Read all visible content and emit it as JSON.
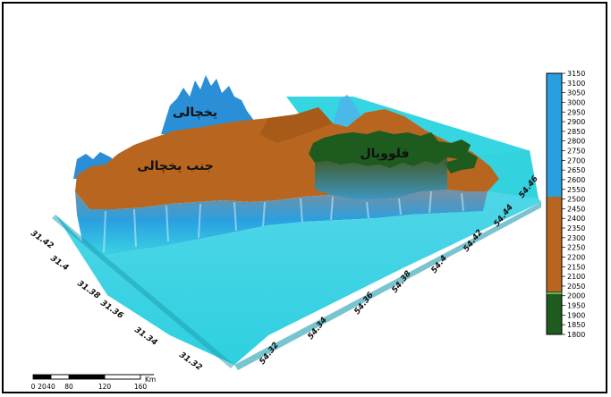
{
  "map": {
    "region_labels": [
      {
        "key": "yakhchal",
        "text": "یخچالی"
      },
      {
        "key": "south_yakhchal",
        "text": "جنب یخچالی"
      },
      {
        "key": "fluvial",
        "text": "فلوویال"
      }
    ],
    "lat_ticks": [
      "31.42",
      "31.4",
      "31.38",
      "31.36",
      "31.34",
      "31.32"
    ],
    "lon_ticks": [
      "54.32",
      "54.34",
      "54.36",
      "54.38",
      "54.4",
      "54.42",
      "54.44",
      "54.46"
    ]
  },
  "legend": {
    "ticks": [
      "3150",
      "3100",
      "3050",
      "3000",
      "2950",
      "2900",
      "2850",
      "2800",
      "2750",
      "2700",
      "2650",
      "2600",
      "2550",
      "2500",
      "2450",
      "2400",
      "2350",
      "2300",
      "2250",
      "2200",
      "2150",
      "2100",
      "2050",
      "2000",
      "1950",
      "1900",
      "1850",
      "1800"
    ],
    "colors": {
      "glacial": "#2a9fe0",
      "periglacial": "#b8661f",
      "fluvial": "#1e5b1e"
    }
  },
  "scale_bar": {
    "labels": [
      "0",
      "20",
      "40",
      "80",
      "120",
      "160"
    ],
    "unit": "Km"
  }
}
